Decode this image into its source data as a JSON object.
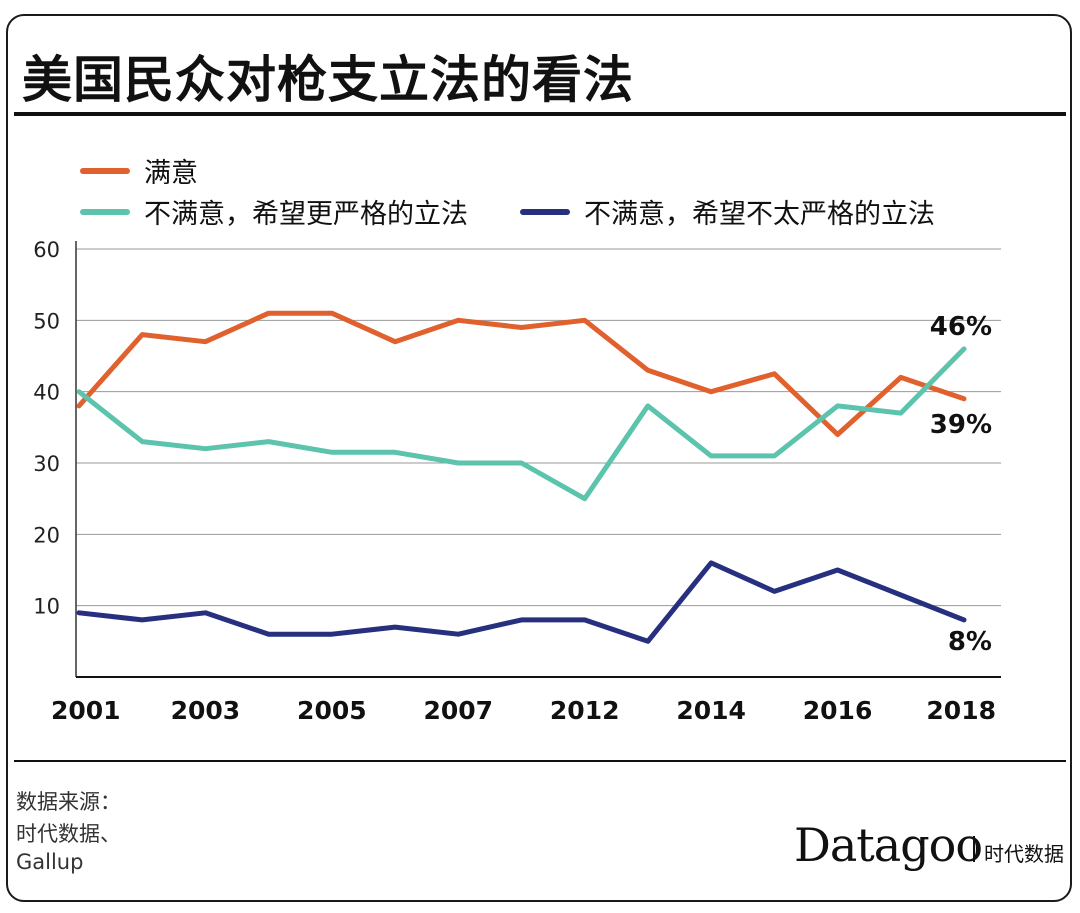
{
  "title": "美国民众对枪支立法的看法",
  "legend": [
    {
      "label": "满意",
      "color": "#e0612e"
    },
    {
      "label": "不满意，希望更严格的立法",
      "color": "#5cc3ad"
    },
    {
      "label": "不满意，希望不太严格的立法",
      "color": "#27307f"
    }
  ],
  "chart_data": {
    "type": "line",
    "title": "美国民众对枪支立法的看法",
    "xlabel": "",
    "ylabel": "",
    "ylim": [
      0,
      60
    ],
    "yticks": [
      10,
      20,
      30,
      40,
      50,
      60
    ],
    "x_tick_labels": [
      "2001",
      "2003",
      "2005",
      "2007",
      "2012",
      "2014",
      "2016",
      "2018"
    ],
    "x_tick_positions": [
      0,
      2,
      4,
      6,
      8,
      10,
      12,
      14
    ],
    "grid": true,
    "legend_position": "top",
    "series": [
      {
        "name": "满意",
        "color": "#e0612e",
        "values": [
          38,
          48,
          47,
          51,
          51,
          47,
          50,
          49,
          50,
          43,
          40,
          42.5,
          34,
          42,
          39
        ]
      },
      {
        "name": "不满意，希望更严格的立法",
        "color": "#5cc3ad",
        "values": [
          40,
          33,
          32,
          33,
          31.5,
          31.5,
          30,
          30,
          25,
          38,
          31,
          31,
          38,
          37,
          46
        ]
      },
      {
        "name": "不满意，希望不太严格的立法",
        "color": "#27307f",
        "values": [
          9,
          8,
          9,
          6,
          6,
          7,
          6,
          8,
          8,
          5,
          16,
          12,
          15,
          11.5,
          8
        ]
      }
    ],
    "end_labels": [
      "39%",
      "46%",
      "8%"
    ]
  },
  "source_lines": [
    "数据来源：",
    "时代数据、",
    "Gallup"
  ],
  "brand": {
    "name": "Datagoo",
    "sub": "时代数据"
  }
}
